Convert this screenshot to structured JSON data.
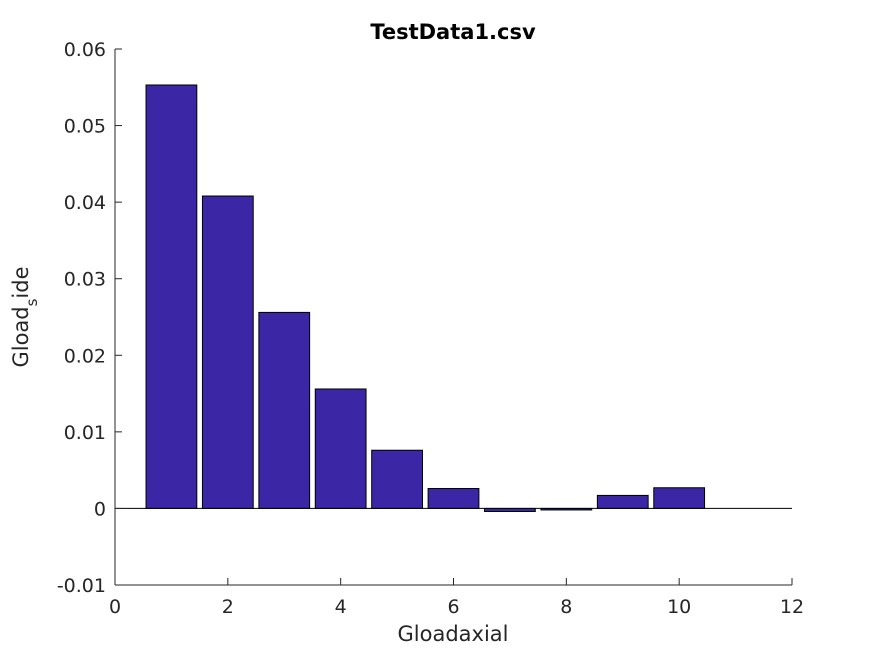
{
  "chart_data": {
    "type": "bar",
    "title": "TestData1.csv",
    "xlabel": "Gloadaxial",
    "ylabel": {
      "main": "Gload",
      "sub": "s",
      "rest": "ide"
    },
    "xlim": [
      0,
      12
    ],
    "ylim": [
      -0.01,
      0.06
    ],
    "xticks": [
      0,
      2,
      4,
      6,
      8,
      10,
      12
    ],
    "xtick_labels": [
      "0",
      "2",
      "4",
      "6",
      "8",
      "10",
      "12"
    ],
    "yticks": [
      -0.01,
      0,
      0.01,
      0.02,
      0.03,
      0.04,
      0.05,
      0.06
    ],
    "ytick_labels": [
      "-0.01",
      "0",
      "0.01",
      "0.02",
      "0.03",
      "0.04",
      "0.05",
      "0.06"
    ],
    "x": [
      1,
      2,
      3,
      4,
      5,
      6,
      7,
      8,
      9,
      10
    ],
    "values": [
      0.0553,
      0.0408,
      0.0256,
      0.0156,
      0.0076,
      0.0026,
      -0.0004,
      -0.0002,
      0.0017,
      0.0027
    ],
    "bar_width": 0.9,
    "bar_color": "#3b27a6",
    "bar_edge_color": "#000000",
    "grid": false,
    "legend": "none"
  }
}
